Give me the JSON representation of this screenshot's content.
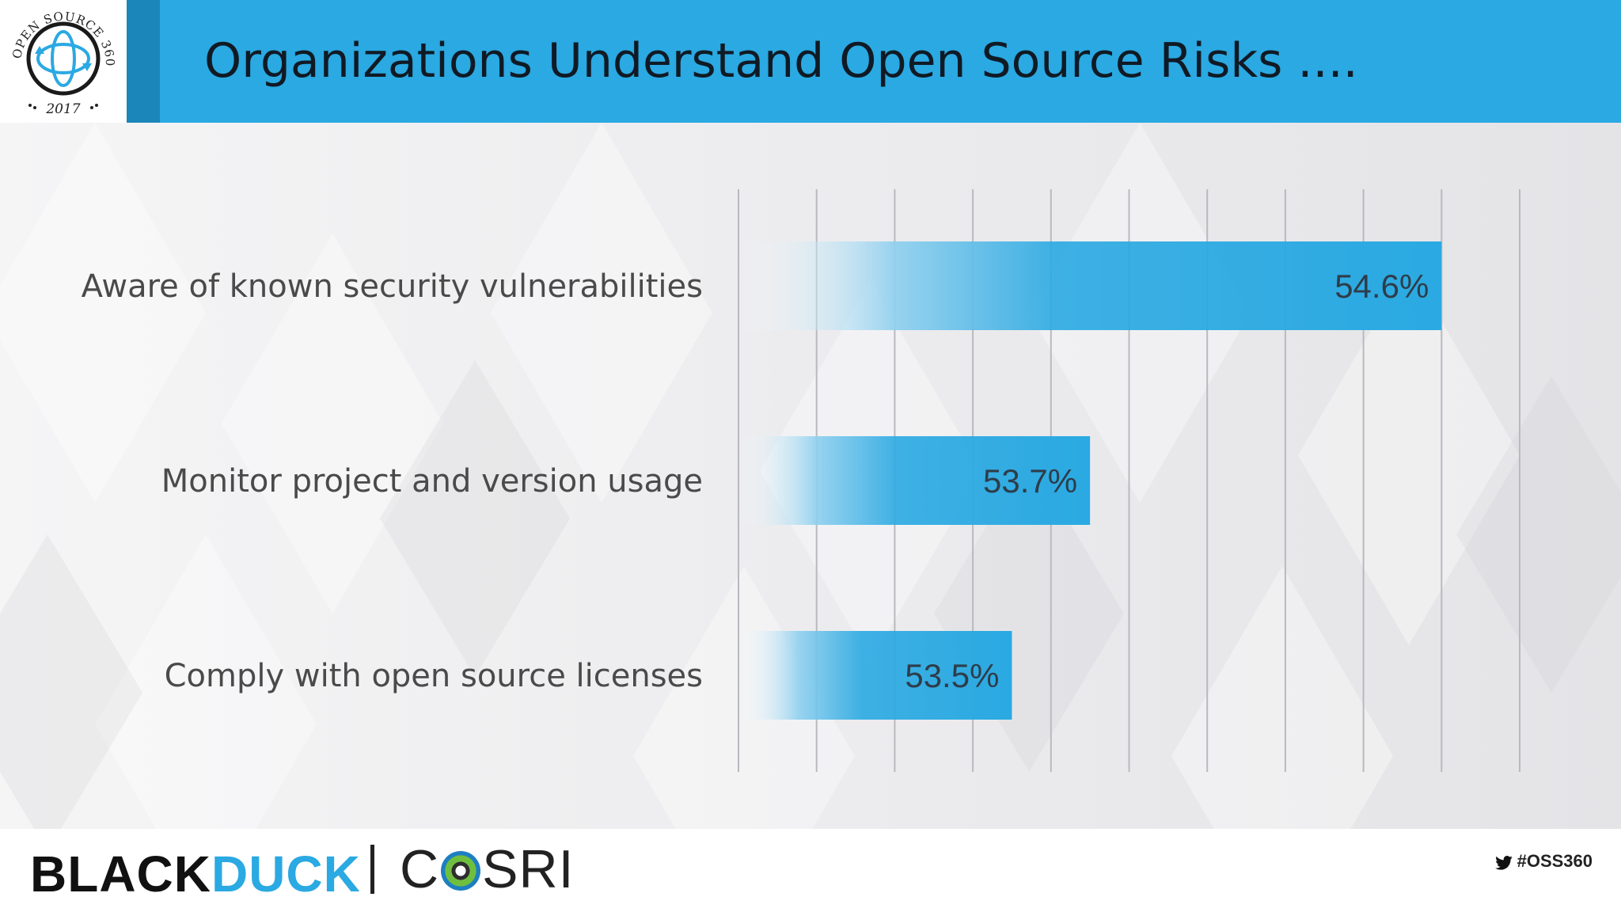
{
  "header": {
    "title": "Organizations Understand Open Source Risks ....",
    "logo_ring_text": "OPEN SOURCE 360° SURVEY",
    "logo_year": "2017"
  },
  "chart_data": {
    "type": "bar",
    "orientation": "horizontal",
    "categories": [
      "Aware of known security vulnerabilities",
      "Monitor project and version usage",
      "Comply with open source licenses"
    ],
    "values": [
      54.6,
      53.7,
      53.5
    ],
    "value_labels": [
      "54.6%",
      "53.7%",
      "53.5%"
    ],
    "xlim": [
      52.8,
      54.8
    ],
    "grid": true,
    "bar_color": "#2aa9e2"
  },
  "footer": {
    "brand_left_1": "BLACK",
    "brand_left_2": "DUCK",
    "brand_right_1": "C",
    "brand_right_2": "SRI",
    "hashtag": "#OSS360"
  },
  "colors": {
    "header_bg": "#2aa9e2",
    "header_stripe": "#1b86b9",
    "accent_blue": "#2aa9e2",
    "title_text": "#101a24"
  },
  "icons": [
    "survey-logo-icon",
    "twitter-bird-icon",
    "cosri-eye-icon"
  ]
}
